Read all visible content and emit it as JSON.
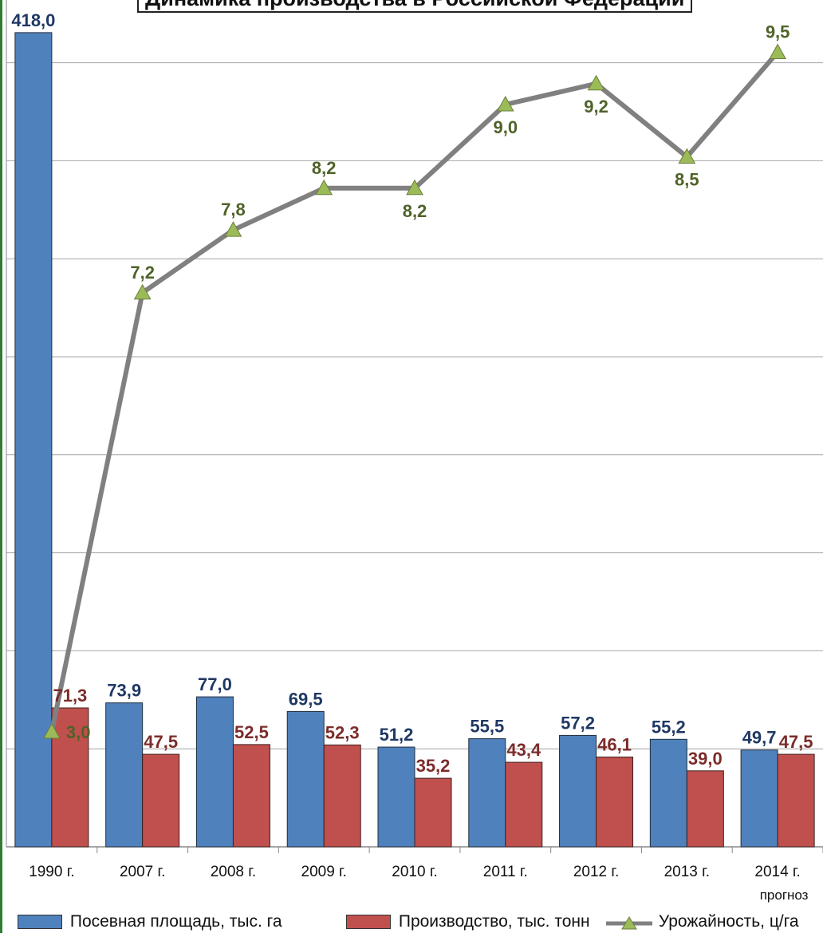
{
  "chart_data": {
    "type": "bar",
    "title": "Динамика производства в Российской Федерации",
    "categories": [
      "1990 г.",
      "2007 г.",
      "2008 г.",
      "2009 г.",
      "2010 г.",
      "2011 г.",
      "2012 г.",
      "2013 г.",
      "2014 г."
    ],
    "category_sublabels": [
      "",
      "",
      "",
      "",
      "",
      "",
      "",
      "",
      "прогноз"
    ],
    "series": [
      {
        "name": "Посевная площадь, тыс. га",
        "kind": "bar",
        "color": "#4f81bd",
        "values": [
          418.0,
          73.9,
          77.0,
          69.5,
          51.2,
          55.5,
          57.2,
          55.2,
          49.7
        ],
        "labels": [
          "418,0",
          "73,9",
          "77,0",
          "69,5",
          "51,2",
          "55,5",
          "57,2",
          "55,2",
          "49,7"
        ]
      },
      {
        "name": "Производство, тыс. тонн",
        "kind": "bar",
        "color": "#c0504d",
        "values": [
          71.3,
          47.5,
          52.5,
          52.3,
          35.2,
          43.4,
          46.1,
          39.0,
          47.5
        ],
        "labels": [
          "71,3",
          "47,5",
          "52,5",
          "52,3",
          "35,2",
          "43,4",
          "46,1",
          "39,0",
          "47,5"
        ]
      },
      {
        "name": "Урожайность, ц/га",
        "kind": "line",
        "color": "#808080",
        "marker_color": "#9bbb59",
        "values": [
          3.0,
          7.2,
          7.8,
          8.2,
          8.2,
          9.0,
          9.2,
          8.5,
          9.5
        ],
        "labels": [
          "3,0",
          "7,2",
          "7,8",
          "8,2",
          "8,2",
          "9,0",
          "9,2",
          "8,5",
          "9,5"
        ]
      }
    ],
    "bar_axis_range": [
      0,
      420
    ],
    "line_axis_range": [
      1.9,
      10.0
    ],
    "grid": true,
    "legend_position": "bottom"
  }
}
